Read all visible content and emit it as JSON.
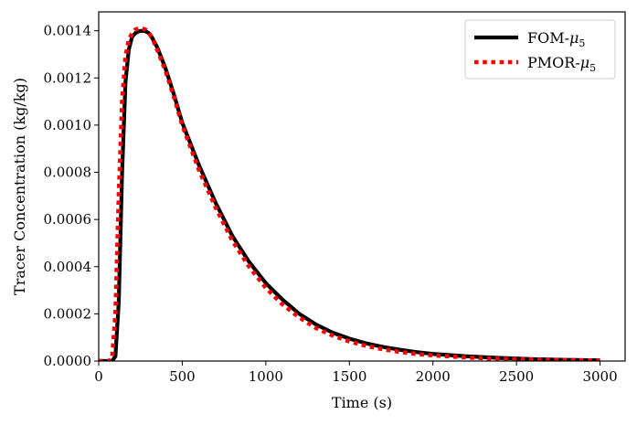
{
  "chart_data": {
    "type": "line",
    "title": "",
    "xlabel": "Time (s)",
    "ylabel": "Tracer Concentration (kg/kg)",
    "xlim": [
      0,
      3150
    ],
    "ylim": [
      0,
      0.00148
    ],
    "xticks": [
      0,
      500,
      1000,
      1500,
      2000,
      2500,
      3000
    ],
    "xtick_labels": [
      "0",
      "500",
      "1000",
      "1500",
      "2000",
      "2500",
      "3000"
    ],
    "yticks": [
      0,
      0.0002,
      0.0004,
      0.0006,
      0.0008,
      0.001,
      0.0012,
      0.0014
    ],
    "ytick_labels": [
      "0.0000",
      "0.0002",
      "0.0004",
      "0.0006",
      "0.0008",
      "0.0010",
      "0.0012",
      "0.0014"
    ],
    "grid": false,
    "legend_position": "top-right",
    "series": [
      {
        "name": "FOM-μ5",
        "name_base": "FOM-",
        "name_symbol": "μ",
        "name_sub": "5",
        "color": "#000000",
        "style": "solid",
        "x": [
          0,
          80,
          100,
          120,
          140,
          160,
          180,
          200,
          220,
          240,
          260,
          280,
          300,
          320,
          350,
          400,
          450,
          500,
          600,
          700,
          800,
          900,
          1000,
          1100,
          1200,
          1300,
          1400,
          1500,
          1600,
          1700,
          1800,
          1900,
          2000,
          2200,
          2400,
          2600,
          2800,
          3000
        ],
        "y": [
          0,
          0,
          2e-05,
          0.00025,
          0.0008,
          0.00118,
          0.00132,
          0.001375,
          0.00139,
          0.001398,
          0.0014,
          0.001398,
          0.00139,
          0.00137,
          0.00133,
          0.00124,
          0.00113,
          0.00101,
          0.00083,
          0.00067,
          0.00053,
          0.00042,
          0.00033,
          0.00026,
          0.0002,
          0.000155,
          0.00012,
          9.5e-05,
          7.5e-05,
          6e-05,
          4.8e-05,
          3.8e-05,
          3e-05,
          2e-05,
          1.3e-05,
          8e-06,
          5e-06,
          3e-06
        ]
      },
      {
        "name": "PMOR-μ5",
        "name_base": "PMOR-",
        "name_symbol": "μ",
        "name_sub": "5",
        "color": "#ff0000",
        "style": "dotted",
        "x": [
          0,
          60,
          80,
          100,
          120,
          140,
          160,
          180,
          200,
          220,
          240,
          260,
          280,
          300,
          320,
          350,
          400,
          450,
          500,
          600,
          700,
          800,
          900,
          1000,
          1100,
          1200,
          1300,
          1400,
          1500,
          1600,
          1700,
          1800,
          1900,
          2000,
          2200,
          2400,
          2600,
          2800,
          3000
        ],
        "y": [
          0,
          0,
          1e-05,
          0.0002,
          0.0007,
          0.0011,
          0.00129,
          0.00136,
          0.00139,
          0.001405,
          0.00141,
          0.00141,
          0.001405,
          0.00139,
          0.00137,
          0.00132,
          0.00123,
          0.00112,
          0.001,
          0.00081,
          0.00065,
          0.00051,
          0.0004,
          0.00031,
          0.00024,
          0.000185,
          0.00014,
          0.000108,
          8.3e-05,
          6.4e-05,
          5e-05,
          3.9e-05,
          3e-05,
          2.4e-05,
          1.5e-05,
          9e-06,
          6e-06,
          4e-06,
          2e-06
        ]
      }
    ]
  }
}
